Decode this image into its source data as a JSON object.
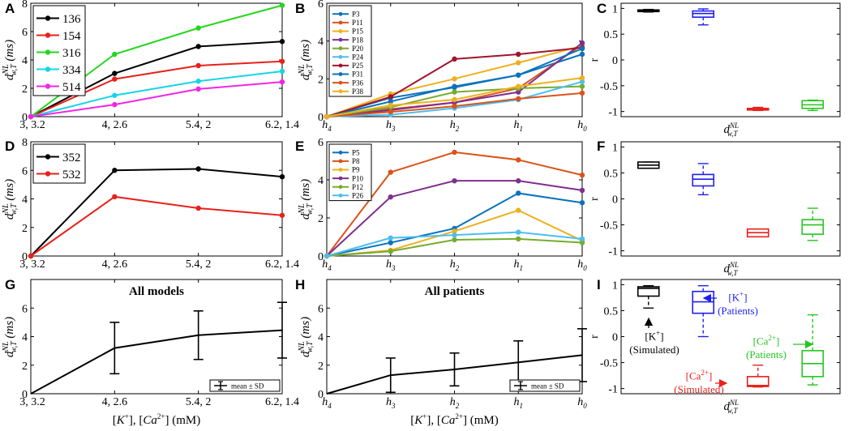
{
  "axis_labels": {
    "y_main": "d",
    "y_super": "NL",
    "y_sub": "w,T",
    "y_unit": "(ms)",
    "r_label": "r",
    "x_bottom": "[K⁺], [Ca²⁺] (mM)"
  },
  "chart_data": [
    {
      "panel": "A",
      "type": "line",
      "ylim": [
        0,
        8
      ],
      "yticks": [
        0,
        2,
        4,
        6,
        8
      ],
      "categories": [
        "3, 3.2",
        "4, 2.6",
        "5.4, 2",
        "6.2, 1.4"
      ],
      "legend_position": "top-left",
      "series": [
        {
          "name": "136",
          "color": "#000000",
          "values": [
            0,
            3.05,
            4.95,
            5.3
          ]
        },
        {
          "name": "154",
          "color": "#e8211b",
          "values": [
            0,
            2.65,
            3.6,
            3.9
          ]
        },
        {
          "name": "316",
          "color": "#25d61e",
          "values": [
            0,
            4.4,
            6.25,
            7.85
          ]
        },
        {
          "name": "334",
          "color": "#15d5e8",
          "values": [
            0,
            1.5,
            2.5,
            3.2
          ]
        },
        {
          "name": "514",
          "color": "#f026e6",
          "values": [
            0,
            0.85,
            1.95,
            2.45
          ]
        }
      ]
    },
    {
      "panel": "B",
      "type": "line",
      "ylim": [
        0,
        6
      ],
      "yticks": [
        0,
        2,
        4,
        6
      ],
      "categories": [
        "h4",
        "h3",
        "h2",
        "h1",
        "h0"
      ],
      "legend_position": "top-left",
      "series": [
        {
          "name": "P3",
          "color": "#0a72bd",
          "values": [
            0,
            1.0,
            1.55,
            2.2,
            3.3
          ]
        },
        {
          "name": "P11",
          "color": "#d9541a",
          "values": [
            0,
            0.4,
            0.75,
            1.5,
            3.8
          ]
        },
        {
          "name": "P15",
          "color": "#edb11f",
          "values": [
            0,
            1.2,
            2.0,
            2.85,
            3.75
          ]
        },
        {
          "name": "P18",
          "color": "#7e2f8e",
          "values": [
            0,
            0.35,
            0.75,
            1.3,
            3.9
          ]
        },
        {
          "name": "P20",
          "color": "#76ac30",
          "values": [
            0,
            0.5,
            1.3,
            1.5,
            1.6
          ]
        },
        {
          "name": "P24",
          "color": "#4dbeee",
          "values": [
            0,
            0.1,
            0.45,
            0.9,
            1.85
          ]
        },
        {
          "name": "P25",
          "color": "#a2142f",
          "values": [
            0,
            1.05,
            3.05,
            3.3,
            3.65
          ]
        },
        {
          "name": "P31",
          "color": "#0a72bd",
          "values": [
            0,
            0.8,
            1.6,
            2.2,
            3.6
          ]
        },
        {
          "name": "P36",
          "color": "#d9541a",
          "values": [
            0,
            0.25,
            0.55,
            0.95,
            1.25
          ]
        },
        {
          "name": "P38",
          "color": "#edb11f",
          "values": [
            0,
            0.6,
            0.9,
            1.6,
            2.05
          ]
        }
      ]
    },
    {
      "panel": "C",
      "type": "box",
      "ylim": [
        -1.1,
        1.1
      ],
      "yticks": [
        -1,
        -0.5,
        0,
        0.5,
        1
      ],
      "xlabel": "d_w,T^NL",
      "boxes": [
        {
          "color": "#000000",
          "min": 0.93,
          "q1": 0.94,
          "median": 0.96,
          "q3": 0.97,
          "max": 0.98
        },
        {
          "color": "#1f1ff0",
          "min": 0.68,
          "q1": 0.83,
          "median": 0.9,
          "q3": 0.95,
          "max": 0.99
        },
        {
          "color": "#e8211b",
          "min": -0.98,
          "q1": -0.96,
          "median": -0.95,
          "q3": -0.94,
          "max": -0.92
        },
        {
          "color": "#25c61e",
          "min": -0.98,
          "q1": -0.94,
          "median": -0.87,
          "q3": -0.79,
          "max": -0.78
        }
      ]
    },
    {
      "panel": "D",
      "type": "line",
      "ylim": [
        0,
        8
      ],
      "yticks": [
        0,
        2,
        4,
        6,
        8
      ],
      "categories": [
        "3, 3.2",
        "4, 2.6",
        "5.4, 2",
        "6.2, 1.4"
      ],
      "legend_position": "top-left",
      "series": [
        {
          "name": "352",
          "color": "#000000",
          "values": [
            0,
            6.0,
            6.1,
            5.55
          ]
        },
        {
          "name": "532",
          "color": "#e8211b",
          "values": [
            0,
            4.15,
            3.35,
            2.85
          ]
        }
      ]
    },
    {
      "panel": "E",
      "type": "line",
      "ylim": [
        0,
        6
      ],
      "yticks": [
        0,
        2,
        4,
        6
      ],
      "categories": [
        "h4",
        "h3",
        "h2",
        "h1",
        "h0"
      ],
      "legend_position": "top-left",
      "series": [
        {
          "name": "P5",
          "color": "#0a72bd",
          "values": [
            0,
            0.7,
            1.45,
            3.3,
            2.8
          ]
        },
        {
          "name": "P8",
          "color": "#d9541a",
          "values": [
            0,
            4.4,
            5.45,
            5.05,
            4.25
          ]
        },
        {
          "name": "P9",
          "color": "#edb11f",
          "values": [
            0,
            0.3,
            1.3,
            2.4,
            0.8
          ]
        },
        {
          "name": "P10",
          "color": "#7e2f8e",
          "values": [
            0,
            3.1,
            3.95,
            3.95,
            3.45
          ]
        },
        {
          "name": "P12",
          "color": "#76ac30",
          "values": [
            0,
            0.25,
            0.85,
            0.9,
            0.7
          ]
        },
        {
          "name": "P26",
          "color": "#4dbeee",
          "values": [
            0,
            0.95,
            1.1,
            1.25,
            0.9
          ]
        }
      ]
    },
    {
      "panel": "F",
      "type": "box",
      "ylim": [
        -1.1,
        1.1
      ],
      "yticks": [
        -1,
        -0.5,
        0,
        0.5,
        1
      ],
      "xlabel": "d_w,T^NL",
      "boxes": [
        {
          "color": "#000000",
          "min": 0.59,
          "q1": 0.59,
          "median": 0.65,
          "q3": 0.71,
          "max": 0.71
        },
        {
          "color": "#1f1ff0",
          "min": 0.08,
          "q1": 0.25,
          "median": 0.38,
          "q3": 0.47,
          "max": 0.68
        },
        {
          "color": "#e8211b",
          "min": -0.73,
          "q1": -0.73,
          "median": -0.65,
          "q3": -0.58,
          "max": -0.58
        },
        {
          "color": "#25c61e",
          "min": -0.8,
          "q1": -0.68,
          "median": -0.5,
          "q3": -0.4,
          "max": -0.18
        }
      ]
    },
    {
      "panel": "G",
      "type": "line-errorbar",
      "ylim": [
        0,
        8
      ],
      "yticks": [
        0,
        2,
        4,
        6
      ],
      "title": "All models",
      "categories": [
        "3, 3.2",
        "4, 2.6",
        "5.4, 2",
        "6.2, 1.4"
      ],
      "legend": "mean ± SD",
      "legend_position": "bottom-right",
      "mean": [
        0,
        3.2,
        4.1,
        4.45
      ],
      "sd": [
        0,
        1.8,
        1.7,
        1.95
      ]
    },
    {
      "panel": "H",
      "type": "line-errorbar",
      "ylim": [
        0,
        8
      ],
      "yticks": [
        0,
        2,
        4,
        6
      ],
      "title": "All patients",
      "categories": [
        "h4",
        "h3",
        "h2",
        "h1",
        "h0"
      ],
      "legend": "mean ± SD",
      "legend_position": "bottom-right",
      "mean": [
        0,
        1.3,
        1.7,
        2.2,
        2.7
      ],
      "sd": [
        0,
        1.2,
        1.15,
        1.5,
        1.85
      ]
    },
    {
      "panel": "I",
      "type": "box",
      "ylim": [
        -1.1,
        1.1
      ],
      "yticks": [
        -1,
        -0.5,
        0,
        0.5,
        1
      ],
      "xlabel": "d_w,T^NL",
      "boxes": [
        {
          "color": "#000000",
          "min": 0.55,
          "q1": 0.78,
          "median": 0.93,
          "q3": 0.96,
          "max": 0.98
        },
        {
          "color": "#1f1ff0",
          "min": 0.0,
          "q1": 0.45,
          "median": 0.67,
          "q3": 0.87,
          "max": 0.98
        },
        {
          "color": "#e8211b",
          "min": -0.97,
          "q1": -0.96,
          "median": -0.94,
          "q3": -0.77,
          "max": -0.55
        },
        {
          "color": "#25c61e",
          "min": -0.93,
          "q1": -0.77,
          "median": -0.52,
          "q3": -0.27,
          "max": 0.42
        }
      ],
      "annotations": [
        {
          "base": "K",
          "charge": "+",
          "group": "(Simulated)",
          "color": "#000000"
        },
        {
          "base": "K",
          "charge": "+",
          "group": "(Patients)",
          "color": "#1f1ff0"
        },
        {
          "base": "Ca",
          "charge": "2+",
          "group": "(Simulated)",
          "color": "#e8211b"
        },
        {
          "base": "Ca",
          "charge": "2+",
          "group": "(Patients)",
          "color": "#25c61e"
        }
      ]
    }
  ]
}
